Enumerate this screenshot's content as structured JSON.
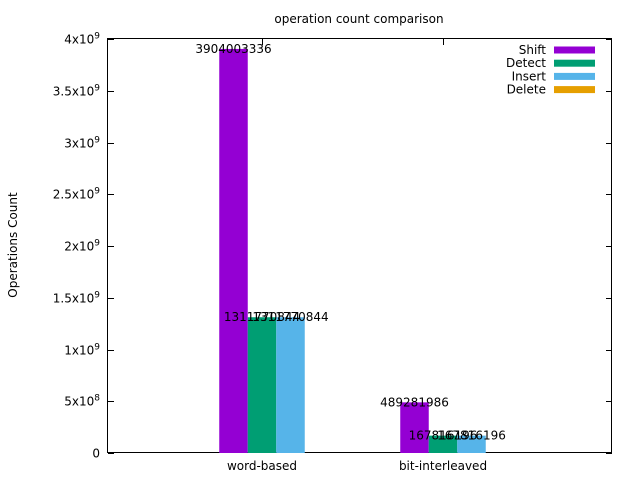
{
  "chart_data": {
    "type": "bar",
    "title": "operation count comparison",
    "xlabel": "",
    "ylabel": "Operations Count",
    "ylim": [
      0,
      4000000000
    ],
    "yticks": [
      {
        "value": 0,
        "base": "0",
        "exp": ""
      },
      {
        "value": 500000000,
        "base": "5x10",
        "exp": "8"
      },
      {
        "value": 1000000000,
        "base": "1x10",
        "exp": "9"
      },
      {
        "value": 1500000000,
        "base": "1.5x10",
        "exp": "9"
      },
      {
        "value": 2000000000,
        "base": "2x10",
        "exp": "9"
      },
      {
        "value": 2500000000,
        "base": "2.5x10",
        "exp": "9"
      },
      {
        "value": 3000000000,
        "base": "3x10",
        "exp": "9"
      },
      {
        "value": 3500000000,
        "base": "3.5x10",
        "exp": "9"
      },
      {
        "value": 4000000000,
        "base": "4x10",
        "exp": "9"
      }
    ],
    "categories": [
      "word-based",
      "bit-interleaved"
    ],
    "series": [
      {
        "name": "Shift",
        "color": "#9400d3",
        "values": [
          3904003336,
          489281986
        ],
        "labels": [
          "3904003336",
          "489281986"
        ]
      },
      {
        "name": "Detect",
        "color": "#009e73",
        "values": [
          1311770844,
          167816196
        ],
        "labels": [
          "1311770844",
          "167816196"
        ]
      },
      {
        "name": "Insert",
        "color": "#56b4e9",
        "values": [
          1311770844,
          167816196
        ],
        "labels": [
          "1311770844",
          "167816196"
        ]
      },
      {
        "name": "Delete",
        "color": "#e69f00",
        "values": [
          0,
          0
        ],
        "labels": [
          "",
          ""
        ]
      }
    ],
    "grid": false,
    "legend": "top-right"
  }
}
